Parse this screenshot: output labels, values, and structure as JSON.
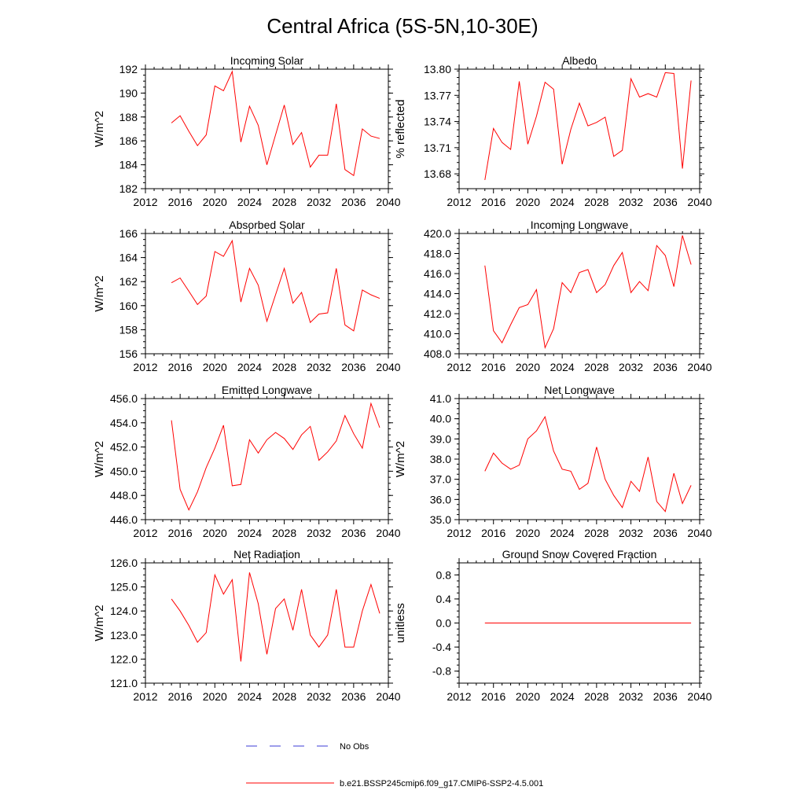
{
  "figure": {
    "title": "Central Africa (5S-5N,10-30E)"
  },
  "legend": {
    "placement": "bottom-center",
    "items": [
      {
        "label": "No Obs",
        "color": "#3b3bd6",
        "style": "dashed"
      },
      {
        "label": "b.e21.BSSP245cmip6.f09_g17.CMIP6-SSP2-4.5.001",
        "color": "#ff0000",
        "style": "solid"
      }
    ]
  },
  "chart_data": [
    {
      "type": "line",
      "title": "Incoming Solar",
      "xlabel": "",
      "ylabel": "W/m^2",
      "xlim": [
        2012,
        2040
      ],
      "ylim": [
        182,
        192
      ],
      "xticks": [
        "2012",
        "2016",
        "2020",
        "2024",
        "2028",
        "2032",
        "2036",
        "2040"
      ],
      "yticks": [
        "182",
        "184",
        "186",
        "188",
        "190",
        "192"
      ],
      "grid": false,
      "series": [
        {
          "color": "#ff0000",
          "x": [
            2015,
            2016,
            2017,
            2018,
            2019,
            2020,
            2021,
            2022,
            2023,
            2024,
            2025,
            2026,
            2027,
            2028,
            2029,
            2030,
            2031,
            2032,
            2033,
            2034,
            2035,
            2036,
            2037,
            2038,
            2039
          ],
          "values": [
            187.5,
            188.1,
            186.8,
            185.6,
            186.5,
            190.6,
            190.2,
            191.8,
            185.9,
            188.9,
            187.3,
            184.0,
            186.5,
            189.0,
            185.7,
            186.7,
            183.8,
            184.8,
            184.8,
            189.1,
            183.6,
            183.1,
            187.0,
            186.4,
            186.2
          ]
        }
      ]
    },
    {
      "type": "line",
      "title": "Albedo",
      "xlabel": "",
      "ylabel": "% reflected",
      "xlim": [
        2012,
        2040
      ],
      "ylim": [
        13.663,
        13.8
      ],
      "xticks": [
        "2012",
        "2016",
        "2020",
        "2024",
        "2028",
        "2032",
        "2036",
        "2040"
      ],
      "yticks": [
        "13.68",
        "13.71",
        "13.74",
        "13.77",
        "13.80"
      ],
      "grid": false,
      "series": [
        {
          "color": "#ff0000",
          "x": [
            2015,
            2016,
            2017,
            2018,
            2019,
            2020,
            2021,
            2022,
            2023,
            2024,
            2025,
            2026,
            2027,
            2028,
            2029,
            2030,
            2031,
            2032,
            2033,
            2034,
            2035,
            2036,
            2037,
            2038,
            2039
          ],
          "values": [
            13.673,
            13.732,
            13.716,
            13.708,
            13.786,
            13.714,
            13.746,
            13.785,
            13.777,
            13.691,
            13.731,
            13.761,
            13.735,
            13.739,
            13.745,
            13.7,
            13.707,
            13.789,
            13.768,
            13.772,
            13.768,
            13.796,
            13.795,
            13.686,
            13.787
          ]
        }
      ]
    },
    {
      "type": "line",
      "title": "Absorbed Solar",
      "xlabel": "",
      "ylabel": "W/m^2",
      "xlim": [
        2012,
        2040
      ],
      "ylim": [
        156,
        166
      ],
      "xticks": [
        "2012",
        "2016",
        "2020",
        "2024",
        "2028",
        "2032",
        "2036",
        "2040"
      ],
      "yticks": [
        "156",
        "158",
        "160",
        "162",
        "164",
        "166"
      ],
      "grid": false,
      "series": [
        {
          "color": "#ff0000",
          "x": [
            2015,
            2016,
            2017,
            2018,
            2019,
            2020,
            2021,
            2022,
            2023,
            2024,
            2025,
            2026,
            2027,
            2028,
            2029,
            2030,
            2031,
            2032,
            2033,
            2034,
            2035,
            2036,
            2037,
            2038,
            2039
          ],
          "values": [
            161.9,
            162.3,
            161.2,
            160.1,
            160.8,
            164.5,
            164.1,
            165.4,
            160.3,
            163.1,
            161.7,
            158.7,
            160.9,
            163.1,
            160.2,
            161.1,
            158.6,
            159.3,
            159.4,
            163.1,
            158.4,
            157.9,
            161.3,
            160.9,
            160.6
          ]
        }
      ]
    },
    {
      "type": "line",
      "title": "Incoming Longwave",
      "xlabel": "",
      "ylabel": "",
      "xlim": [
        2012,
        2040
      ],
      "ylim": [
        408,
        420
      ],
      "xticks": [
        "2012",
        "2016",
        "2020",
        "2024",
        "2028",
        "2032",
        "2036",
        "2040"
      ],
      "yticks": [
        "408.0",
        "410.0",
        "412.0",
        "414.0",
        "416.0",
        "418.0",
        "420.0"
      ],
      "grid": false,
      "series": [
        {
          "color": "#ff0000",
          "x": [
            2015,
            2016,
            2017,
            2018,
            2019,
            2020,
            2021,
            2022,
            2023,
            2024,
            2025,
            2026,
            2027,
            2028,
            2029,
            2030,
            2031,
            2032,
            2033,
            2034,
            2035,
            2036,
            2037,
            2038,
            2039
          ],
          "values": [
            416.8,
            410.3,
            409.1,
            410.9,
            412.6,
            412.9,
            414.4,
            408.6,
            410.5,
            415.1,
            414.1,
            416.1,
            416.4,
            414.1,
            414.9,
            416.8,
            418.1,
            414.1,
            415.2,
            414.3,
            418.8,
            417.8,
            414.7,
            419.8,
            416.9
          ]
        }
      ]
    },
    {
      "type": "line",
      "title": "Emitted Longwave",
      "xlabel": "",
      "ylabel": "W/m^2",
      "xlim": [
        2012,
        2040
      ],
      "ylim": [
        446,
        456
      ],
      "xticks": [
        "2012",
        "2016",
        "2020",
        "2024",
        "2028",
        "2032",
        "2036",
        "2040"
      ],
      "yticks": [
        "446.0",
        "448.0",
        "450.0",
        "452.0",
        "454.0",
        "456.0"
      ],
      "grid": false,
      "series": [
        {
          "color": "#ff0000",
          "x": [
            2015,
            2016,
            2017,
            2018,
            2019,
            2020,
            2021,
            2022,
            2023,
            2024,
            2025,
            2026,
            2027,
            2028,
            2029,
            2030,
            2031,
            2032,
            2033,
            2034,
            2035,
            2036,
            2037,
            2038,
            2039
          ],
          "values": [
            454.2,
            448.5,
            446.8,
            448.3,
            450.3,
            451.9,
            453.8,
            448.8,
            448.9,
            452.6,
            451.5,
            452.6,
            453.2,
            452.7,
            451.8,
            453.0,
            453.7,
            450.9,
            451.6,
            452.5,
            454.6,
            453.1,
            451.9,
            455.6,
            453.6
          ]
        }
      ]
    },
    {
      "type": "line",
      "title": "Net Longwave",
      "xlabel": "",
      "ylabel": "W/m^2",
      "xlim": [
        2012,
        2040
      ],
      "ylim": [
        35,
        41
      ],
      "xticks": [
        "2012",
        "2016",
        "2020",
        "2024",
        "2028",
        "2032",
        "2036",
        "2040"
      ],
      "yticks": [
        "35.0",
        "36.0",
        "37.0",
        "38.0",
        "39.0",
        "40.0",
        "41.0"
      ],
      "grid": false,
      "series": [
        {
          "color": "#ff0000",
          "x": [
            2015,
            2016,
            2017,
            2018,
            2019,
            2020,
            2021,
            2022,
            2023,
            2024,
            2025,
            2026,
            2027,
            2028,
            2029,
            2030,
            2031,
            2032,
            2033,
            2034,
            2035,
            2036,
            2037,
            2038,
            2039
          ],
          "values": [
            37.4,
            38.3,
            37.8,
            37.5,
            37.7,
            39.0,
            39.4,
            40.1,
            38.4,
            37.5,
            37.4,
            36.5,
            36.8,
            38.6,
            37.0,
            36.2,
            35.6,
            36.9,
            36.4,
            38.1,
            35.9,
            35.4,
            37.3,
            35.8,
            36.7
          ]
        }
      ]
    },
    {
      "type": "line",
      "title": "Net Radiation",
      "xlabel": "",
      "ylabel": "W/m^2",
      "xlim": [
        2012,
        2040
      ],
      "ylim": [
        121,
        126
      ],
      "xticks": [
        "2012",
        "2016",
        "2020",
        "2024",
        "2028",
        "2032",
        "2036",
        "2040"
      ],
      "yticks": [
        "121.0",
        "122.0",
        "123.0",
        "124.0",
        "125.0",
        "126.0"
      ],
      "grid": false,
      "series": [
        {
          "color": "#ff0000",
          "x": [
            2015,
            2016,
            2017,
            2018,
            2019,
            2020,
            2021,
            2022,
            2023,
            2024,
            2025,
            2026,
            2027,
            2028,
            2029,
            2030,
            2031,
            2032,
            2033,
            2034,
            2035,
            2036,
            2037,
            2038,
            2039
          ],
          "values": [
            124.5,
            124.0,
            123.4,
            122.7,
            123.1,
            125.5,
            124.7,
            125.3,
            121.9,
            125.6,
            124.3,
            122.2,
            124.1,
            124.5,
            123.2,
            124.9,
            123.0,
            122.5,
            123.0,
            124.9,
            122.5,
            122.5,
            124.0,
            125.1,
            123.9
          ]
        }
      ]
    },
    {
      "type": "line",
      "title": "Ground Snow Covered Fraction",
      "xlabel": "",
      "ylabel": "unitless",
      "xlim": [
        2012,
        2040
      ],
      "ylim": [
        -1.0,
        1.0
      ],
      "xticks": [
        "2012",
        "2016",
        "2020",
        "2024",
        "2028",
        "2032",
        "2036",
        "2040"
      ],
      "yticks": [
        "-0.8",
        "-0.4",
        "0.0",
        "0.4",
        "0.8"
      ],
      "grid": false,
      "series": [
        {
          "color": "#ff0000",
          "x": [
            2015,
            2016,
            2017,
            2018,
            2019,
            2020,
            2021,
            2022,
            2023,
            2024,
            2025,
            2026,
            2027,
            2028,
            2029,
            2030,
            2031,
            2032,
            2033,
            2034,
            2035,
            2036,
            2037,
            2038,
            2039
          ],
          "values": [
            0,
            0,
            0,
            0,
            0,
            0,
            0,
            0,
            0,
            0,
            0,
            0,
            0,
            0,
            0,
            0,
            0,
            0,
            0,
            0,
            0,
            0,
            0,
            0,
            0
          ]
        }
      ]
    }
  ]
}
